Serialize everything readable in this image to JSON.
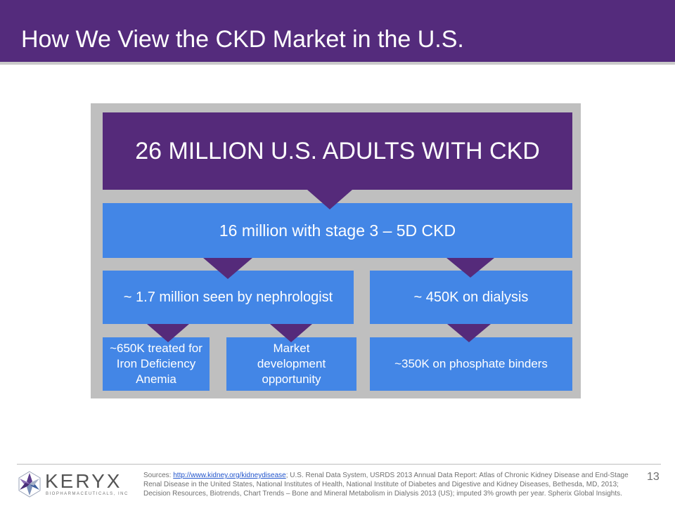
{
  "slide": {
    "title": "How We View the CKD Market in the U.S.",
    "page_number": "13"
  },
  "diagram": {
    "top": "26 MILLION U.S. ADULTS WITH CKD",
    "stage": "16 million with stage 3 – 5D CKD",
    "nephrologist": "~ 1.7 million seen by nephrologist",
    "dialysis": "~ 450K on dialysis",
    "iron": "~650K treated for Iron Deficiency Anemia",
    "market": "Market development opportunity",
    "phosphate": "~350K on phosphate binders"
  },
  "colors": {
    "header": "#542b7c",
    "top_box": "#552a7a",
    "blue_box": "#4386e6",
    "panel": "#bfbfbf"
  },
  "footer": {
    "sources_prefix": "Sources: ",
    "sources_link": "http://www.kidney.org/kidneydisease",
    "sources_text": "; U.S. Renal Data System, USRDS 2013 Annual Data Report: Atlas of Chronic Kidney Disease and End-Stage Renal Disease in the United States, National Institutes of Health, National Institute of Diabetes and Digestive and Kidney Diseases, Bethesda, MD, 2013; Decision Resources, Biotrends, Chart Trends – Bone and Mineral Metabolism in Dialysis 2013 (US); imputed 3% growth per year. Spherix Global Insights."
  },
  "logo": {
    "name": "KERYX",
    "tagline": "BIOPHARMACEUTICALS, INC",
    "icon": "star-logo-icon"
  }
}
